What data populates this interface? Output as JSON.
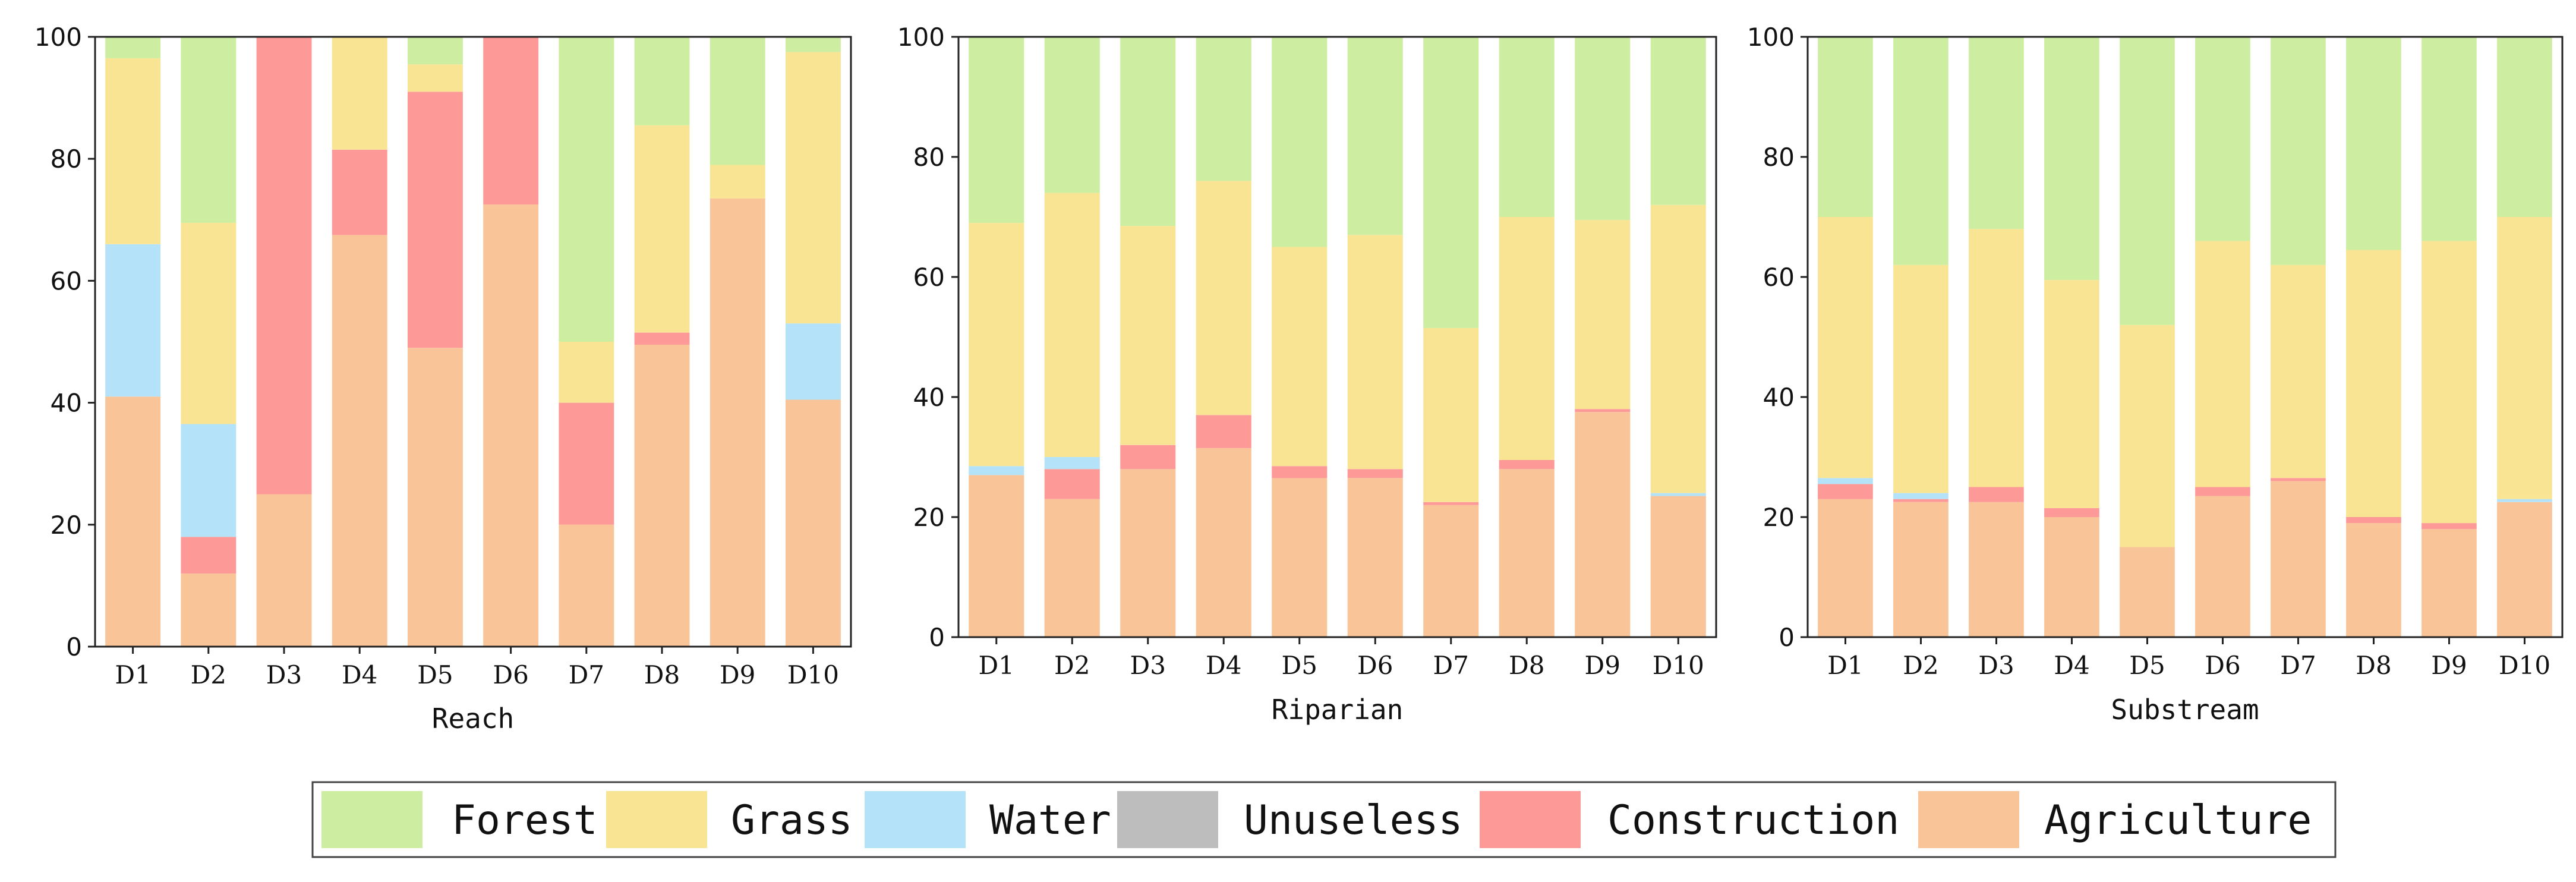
{
  "chart_data": [
    {
      "type": "bar",
      "stacked": true,
      "title": "",
      "xlabel": "Reach",
      "ylabel": "",
      "ylim": [
        0,
        100
      ],
      "yticks": [
        "0",
        "20",
        "40",
        "60",
        "80",
        "100"
      ],
      "categories": [
        "D1",
        "D2",
        "D3",
        "D4",
        "D5",
        "D6",
        "D7",
        "D8",
        "D9",
        "D10"
      ],
      "series": [
        {
          "name": "Agriculture",
          "values": [
            41,
            12,
            25,
            67.5,
            49,
            72.5,
            20,
            49.5,
            73.5,
            40.5
          ]
        },
        {
          "name": "Construction",
          "values": [
            0,
            6,
            75,
            14,
            42,
            27.5,
            20,
            2,
            0,
            0
          ]
        },
        {
          "name": "Unuseless",
          "values": [
            0,
            0,
            0,
            0,
            0,
            0,
            0,
            0,
            0,
            0
          ]
        },
        {
          "name": "Water",
          "values": [
            25,
            18.5,
            0,
            0,
            0,
            0,
            0,
            0,
            0,
            12.5
          ]
        },
        {
          "name": "Grass",
          "values": [
            30.5,
            33,
            0,
            18.5,
            4.5,
            0,
            10,
            34,
            5.5,
            44.5
          ]
        },
        {
          "name": "Forest",
          "values": [
            3.5,
            30.5,
            0,
            0,
            4.5,
            0,
            50,
            14.5,
            21,
            2.5
          ]
        }
      ]
    },
    {
      "type": "bar",
      "stacked": true,
      "title": "",
      "xlabel": "Riparian",
      "ylabel": "",
      "ylim": [
        0,
        100
      ],
      "yticks": [
        "0",
        "20",
        "40",
        "60",
        "80",
        "100"
      ],
      "categories": [
        "D1",
        "D2",
        "D3",
        "D4",
        "D5",
        "D6",
        "D7",
        "D8",
        "D9",
        "D10"
      ],
      "series": [
        {
          "name": "Agriculture",
          "values": [
            27,
            23,
            28,
            31.5,
            26.5,
            26.5,
            22,
            28,
            37.5,
            23.5
          ]
        },
        {
          "name": "Construction",
          "values": [
            0,
            5,
            4,
            5.5,
            2,
            1.5,
            0.5,
            1.5,
            0.5,
            0
          ]
        },
        {
          "name": "Unuseless",
          "values": [
            0,
            0,
            0,
            0,
            0,
            0,
            0,
            0,
            0,
            0
          ]
        },
        {
          "name": "Water",
          "values": [
            1.5,
            2,
            0,
            0,
            0,
            0,
            0,
            0,
            0,
            0.5
          ]
        },
        {
          "name": "Grass",
          "values": [
            40.5,
            44,
            36.5,
            39,
            36.5,
            39,
            29,
            40.5,
            31.5,
            48
          ]
        },
        {
          "name": "Forest",
          "values": [
            31,
            26,
            31.5,
            24,
            35,
            33,
            48.5,
            30,
            30.5,
            28
          ]
        }
      ]
    },
    {
      "type": "bar",
      "stacked": true,
      "title": "",
      "xlabel": "Substream",
      "ylabel": "",
      "ylim": [
        0,
        100
      ],
      "yticks": [
        "0",
        "20",
        "40",
        "60",
        "80",
        "100"
      ],
      "categories": [
        "D1",
        "D2",
        "D3",
        "D4",
        "D5",
        "D6",
        "D7",
        "D8",
        "D9",
        "D10"
      ],
      "series": [
        {
          "name": "Agriculture",
          "values": [
            23,
            22.5,
            22.5,
            20,
            15,
            23.5,
            26,
            19,
            18,
            22.5
          ]
        },
        {
          "name": "Construction",
          "values": [
            2.5,
            0.5,
            2.5,
            1.5,
            0,
            1.5,
            0.5,
            1,
            1,
            0
          ]
        },
        {
          "name": "Unuseless",
          "values": [
            0,
            0,
            0,
            0,
            0,
            0,
            0,
            0,
            0,
            0
          ]
        },
        {
          "name": "Water",
          "values": [
            1,
            1,
            0,
            0,
            0,
            0,
            0,
            0,
            0,
            0.5
          ]
        },
        {
          "name": "Grass",
          "values": [
            43.5,
            38,
            43,
            38,
            37,
            41,
            35.5,
            44.5,
            47,
            47
          ]
        },
        {
          "name": "Forest",
          "values": [
            30,
            38,
            32,
            40.5,
            48,
            34,
            38,
            35.5,
            34,
            30
          ]
        }
      ]
    }
  ],
  "legend": {
    "position": "bottom-center",
    "items": [
      {
        "name": "Forest",
        "color": "#cdeea0"
      },
      {
        "name": "Grass",
        "color": "#f9e494"
      },
      {
        "name": "Water",
        "color": "#b3e2f9"
      },
      {
        "name": "Unuseless",
        "color": "#bdbdbd"
      },
      {
        "name": "Construction",
        "color": "#fd9a98"
      },
      {
        "name": "Agriculture",
        "color": "#f9c497"
      }
    ]
  }
}
